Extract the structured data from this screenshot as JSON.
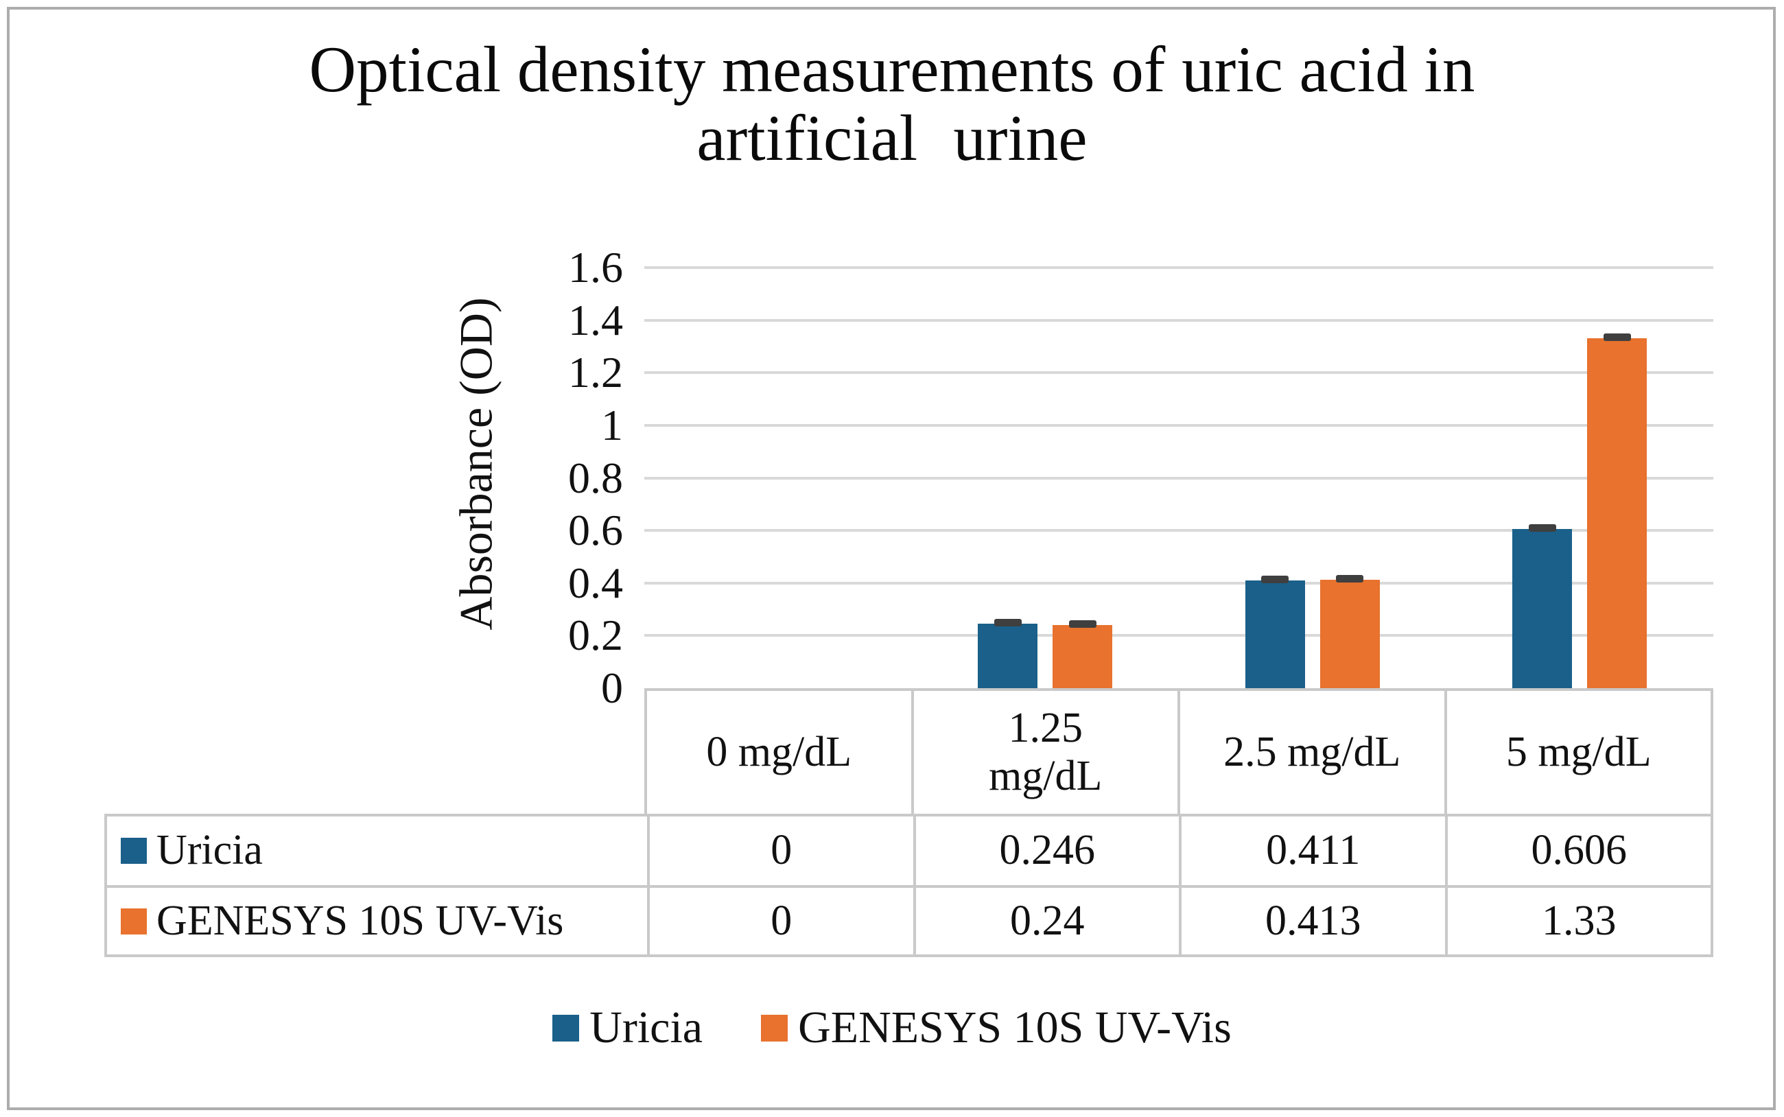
{
  "title": {
    "line1": "Optical density measurements of uric acid in",
    "line2": "artificial urine"
  },
  "y_axis": {
    "label": "Absorbance (OD)",
    "ticks": [
      "1.6",
      "1.4",
      "1.2",
      "1",
      "0.8",
      "0.6",
      "0.4",
      "0.2",
      "0"
    ]
  },
  "chart_data": {
    "type": "bar",
    "title": "Optical density measurements of uric acid in artificial urine",
    "categories": [
      "0 mg/dL",
      "1.25 mg/dL",
      "2.5 mg/dL",
      "5 mg/dL"
    ],
    "series": [
      {
        "name": "Uricia",
        "color": "#1A608A",
        "values": [
          0,
          0.246,
          0.411,
          0.606
        ]
      },
      {
        "name": "GENESYS 10S UV-Vis",
        "color": "#E8722E",
        "values": [
          0,
          0.24,
          0.413,
          1.33
        ]
      }
    ],
    "xlabel": "",
    "ylabel": "Absorbance (OD)",
    "ylim": [
      0,
      1.6
    ],
    "ytick_step": 0.2,
    "grid": true,
    "error_bars": true,
    "legend_position": "bottom",
    "data_table_shown": true
  },
  "data_table": {
    "header_cells": [
      "0 mg/dL",
      "1.25\nmg/dL",
      "2.5 mg/dL",
      "5 mg/dL"
    ],
    "rows": [
      {
        "label": "Uricia",
        "key_color": "#1A608A",
        "values": [
          "0",
          "0.246",
          "0.411",
          "0.606"
        ]
      },
      {
        "label": "GENESYS 10S UV-Vis",
        "key_color": "#E8722E",
        "values": [
          "0",
          "0.24",
          "0.413",
          "1.33"
        ]
      }
    ]
  },
  "legend": {
    "items": [
      {
        "label": "Uricia",
        "color": "#1A608A"
      },
      {
        "label": "GENESYS 10S UV-Vis",
        "color": "#E8722E"
      }
    ]
  },
  "colors": {
    "series_blue": "#1A608A",
    "series_orange": "#E8722E",
    "gridline": "#D9D9D9",
    "table_border": "#C9C9C9",
    "frame_border": "#ADADAD",
    "error_bar": "#3F3F3F",
    "text": "#1A1A1A"
  }
}
